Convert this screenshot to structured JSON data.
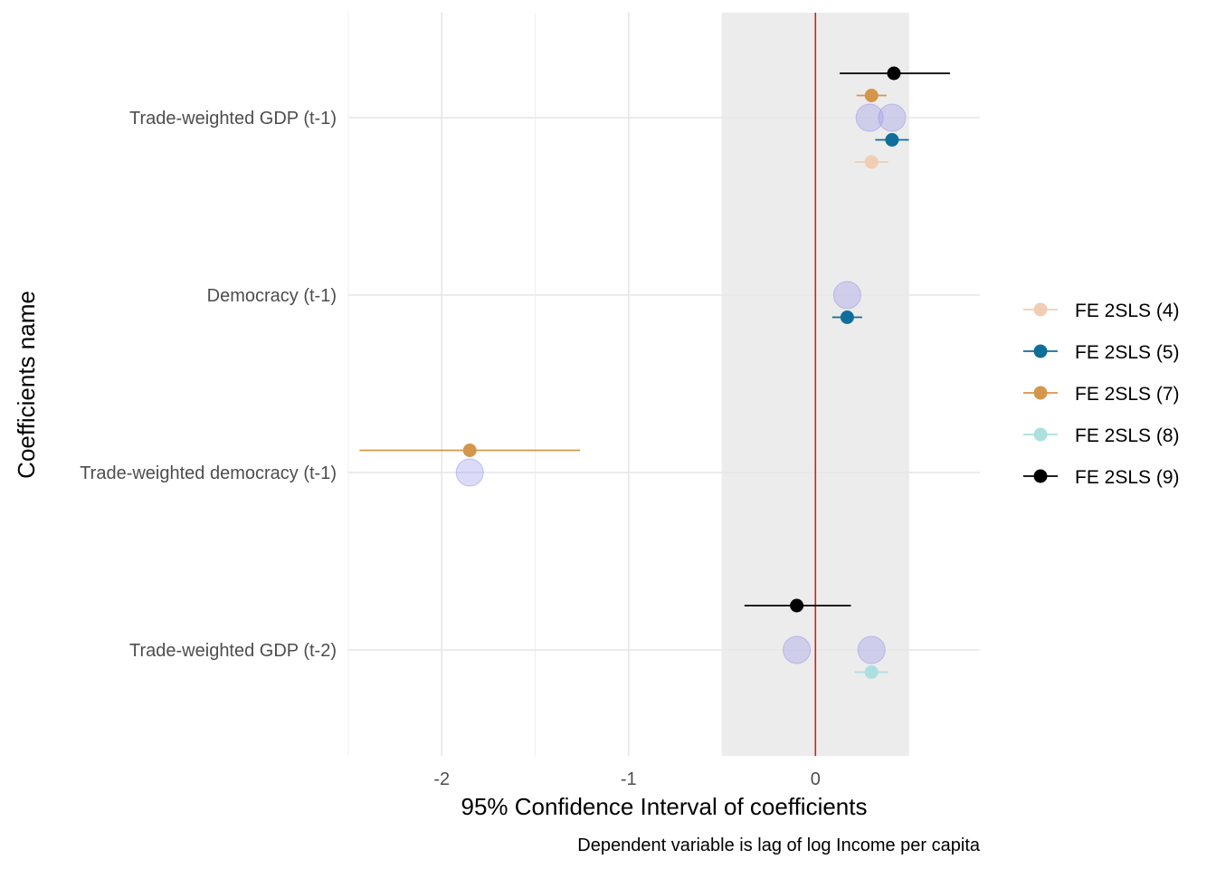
{
  "chart_data": {
    "type": "scatter",
    "subtype": "coefficient-plot",
    "xlabel": "95% Confidence Interval of coefficients",
    "ylabel": "Coefficients name",
    "caption": "Dependent variable is lag of log Income per capita",
    "xlim": [
      -2.5,
      0.88
    ],
    "x_ticks": [
      -2,
      -1,
      0
    ],
    "x_tick_labels": [
      "-2",
      "-1",
      "0"
    ],
    "reference_line": 0,
    "reference_line_color": "#cc2222",
    "shaded_band": [
      -0.5,
      0.5
    ],
    "shaded_band_color": "#ececec",
    "grid": true,
    "legend_position": "right",
    "categories": [
      "Trade-weighted GDP (t-1)",
      "Democracy (t-1)",
      "Trade-weighted democracy (t-1)",
      "Trade-weighted GDP (t-2)"
    ],
    "series": [
      {
        "name": "FE 2SLS (4)",
        "color": "#f0cdb3",
        "slot": -2,
        "points": [
          {
            "category": "Trade-weighted GDP (t-1)",
            "estimate": 0.3,
            "lower": 0.21,
            "upper": 0.39
          }
        ]
      },
      {
        "name": "FE 2SLS (5)",
        "color": "#0f6e9a",
        "slot": -1,
        "points": [
          {
            "category": "Trade-weighted GDP (t-1)",
            "estimate": 0.41,
            "lower": 0.32,
            "upper": 0.5
          },
          {
            "category": "Democracy (t-1)",
            "estimate": 0.17,
            "lower": 0.09,
            "upper": 0.25
          }
        ]
      },
      {
        "name": "FE 2SLS (7)",
        "color": "#d4964a",
        "slot": 1,
        "points": [
          {
            "category": "Trade-weighted GDP (t-1)",
            "estimate": 0.3,
            "lower": 0.22,
            "upper": 0.38
          },
          {
            "category": "Trade-weighted democracy (t-1)",
            "estimate": -1.85,
            "lower": -2.44,
            "upper": -1.26
          }
        ]
      },
      {
        "name": "FE 2SLS (8)",
        "color": "#abdfe0",
        "slot": -1,
        "points": [
          {
            "category": "Trade-weighted GDP (t-2)",
            "estimate": 0.3,
            "lower": 0.21,
            "upper": 0.39
          }
        ]
      },
      {
        "name": "FE 2SLS (9)",
        "color": "#000000",
        "slot": 2,
        "points": [
          {
            "category": "Trade-weighted GDP (t-1)",
            "estimate": 0.42,
            "lower": 0.13,
            "upper": 0.72
          },
          {
            "category": "Trade-weighted GDP (t-2)",
            "estimate": -0.1,
            "lower": -0.38,
            "upper": 0.19
          }
        ]
      }
    ],
    "halo_points": [
      {
        "category": "Trade-weighted GDP (t-1)",
        "x": 0.29
      },
      {
        "category": "Trade-weighted GDP (t-1)",
        "x": 0.41
      },
      {
        "category": "Democracy (t-1)",
        "x": 0.17
      },
      {
        "category": "Trade-weighted democracy (t-1)",
        "x": -1.85
      },
      {
        "category": "Trade-weighted GDP (t-2)",
        "x": -0.1
      },
      {
        "category": "Trade-weighted GDP (t-2)",
        "x": 0.3
      }
    ],
    "halo_color": "#9b97e8"
  }
}
